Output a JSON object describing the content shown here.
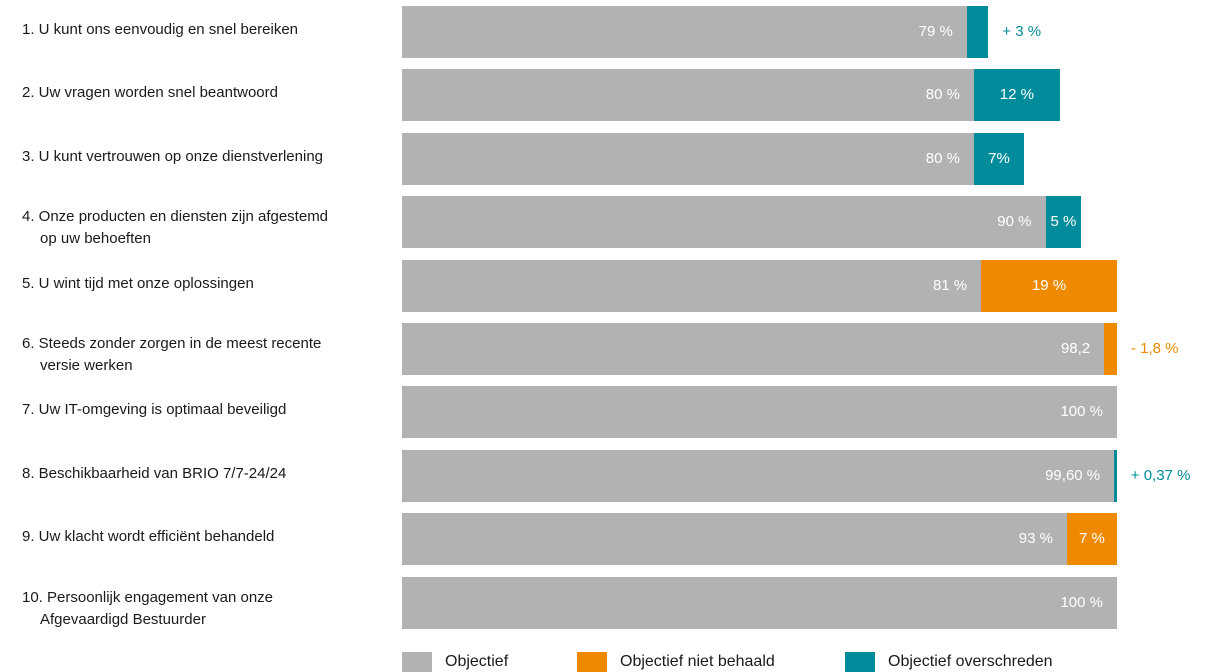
{
  "colors": {
    "objectief": "#b1b2b3",
    "niet_behaald": "#ef8a00",
    "overschreden": "#008c9a"
  },
  "chart_data": {
    "type": "bar",
    "orientation": "horizontal",
    "stacked": true,
    "xlim": [
      0,
      100
    ],
    "categories": [
      [
        "1. U kunt ons eenvoudig en snel bereiken"
      ],
      [
        "2. Uw vragen worden snel beantwoord"
      ],
      [
        "3. U kunt vertrouwen op onze dienstverlening"
      ],
      [
        "4. Onze producten en diensten zijn afgestemd",
        "op uw behoeften"
      ],
      [
        "5. U wint tijd met onze oplossingen"
      ],
      [
        "6. Steeds zonder zorgen in de meest recente",
        "versie werken"
      ],
      [
        "7. Uw IT-omgeving is optimaal beveiligd"
      ],
      [
        "8. Beschikbaarheid van BRIO 7/7-24/24"
      ],
      [
        "9. Uw klacht wordt efficiënt behandeld"
      ],
      [
        "10. Persoonlijk engagement van onze",
        "Afgevaardigd Bestuurder"
      ]
    ],
    "series": [
      {
        "name": "Objectief",
        "color": "#b1b2b3",
        "values": [
          79,
          80,
          80,
          90,
          81,
          98.2,
          100,
          99.6,
          93,
          100
        ],
        "labels": [
          "79 %",
          "80 %",
          "80 %",
          "90 %",
          "81 %",
          "98,2",
          "100 %",
          "99,60 %",
          "93 %",
          "100 %"
        ]
      },
      {
        "name": "Objectief niet behaald",
        "color": "#ef8a00",
        "values": [
          0,
          0,
          0,
          0,
          19,
          1.8,
          0,
          0,
          7,
          0
        ],
        "labels": [
          "",
          "",
          "",
          "",
          "19 %",
          "",
          "",
          "",
          "7 %",
          ""
        ],
        "outside_labels": [
          "",
          "",
          "",
          "",
          "",
          "- 1,8 %",
          "",
          "",
          "",
          ""
        ]
      },
      {
        "name": "Objectief overschreden",
        "color": "#008c9a",
        "values": [
          3,
          12,
          7,
          5,
          0,
          0,
          0,
          0.37,
          0,
          0
        ],
        "labels": [
          "",
          "12 %",
          "7%",
          "5 %",
          "",
          "",
          "",
          "",
          "",
          ""
        ],
        "outside_labels": [
          "+ 3 %",
          "",
          "",
          "",
          "",
          "",
          "",
          "+ 0,37 %",
          "",
          ""
        ]
      }
    ],
    "legend": {
      "position": "bottom",
      "items": [
        "Objectief",
        "Objectief niet behaald",
        "Objectief overschreden"
      ]
    }
  }
}
